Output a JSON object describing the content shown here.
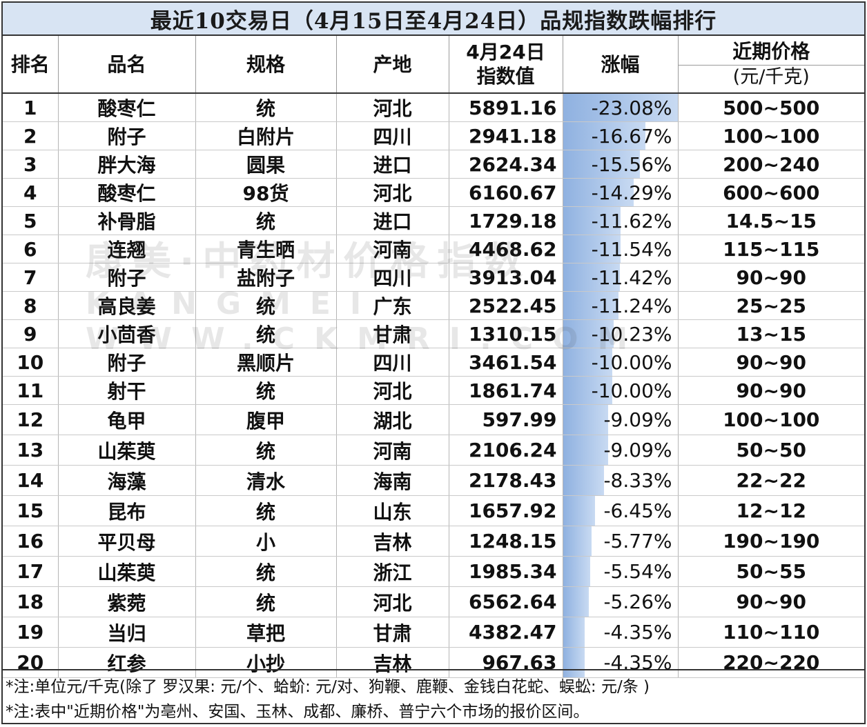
{
  "title": "最近10交易日（4月15日至4月24日）品规指数跌幅排行",
  "columns": [
    "排名",
    "品名",
    "规格",
    "产地",
    "4月24日\n指数值",
    "涨幅",
    "近期价格",
    "(元/千克)"
  ],
  "rows": [
    {
      "rank": "1",
      "name": "酸枣仁",
      "spec": "统",
      "origin": "河北",
      "index": "5891.16",
      "change": "-23.08%",
      "change_value": -23.08,
      "price": "500~500"
    },
    {
      "rank": "2",
      "name": "附子",
      "spec": "白附片",
      "origin": "四川",
      "index": "2941.18",
      "change": "-16.67%",
      "change_value": -16.67,
      "price": "100~100"
    },
    {
      "rank": "3",
      "name": "胖大海",
      "spec": "圆果",
      "origin": "进口",
      "index": "2624.34",
      "change": "-15.56%",
      "change_value": -15.56,
      "price": "200~240"
    },
    {
      "rank": "4",
      "name": "酸枣仁",
      "spec": "98货",
      "origin": "河北",
      "index": "6160.67",
      "change": "-14.29%",
      "change_value": -14.29,
      "price": "600~600"
    },
    {
      "rank": "5",
      "name": "补骨脂",
      "spec": "统",
      "origin": "进口",
      "index": "1729.18",
      "change": "-11.62%",
      "change_value": -11.62,
      "price": "14.5~15"
    },
    {
      "rank": "6",
      "name": "连翘",
      "spec": "青生晒",
      "origin": "河南",
      "index": "4468.62",
      "change": "-11.54%",
      "change_value": -11.54,
      "price": "115~115"
    },
    {
      "rank": "7",
      "name": "附子",
      "spec": "盐附子",
      "origin": "四川",
      "index": "3913.04",
      "change": "-11.42%",
      "change_value": -11.42,
      "price": "90~90"
    },
    {
      "rank": "8",
      "name": "高良姜",
      "spec": "统",
      "origin": "广东",
      "index": "2522.45",
      "change": "-11.24%",
      "change_value": -11.24,
      "price": "25~25"
    },
    {
      "rank": "9",
      "name": "小茴香",
      "spec": "统",
      "origin": "甘肃",
      "index": "1310.15",
      "change": "-10.23%",
      "change_value": -10.23,
      "price": "13~15"
    },
    {
      "rank": "10",
      "name": "附子",
      "spec": "黑顺片",
      "origin": "四川",
      "index": "3461.54",
      "change": "-10.00%",
      "change_value": -10.0,
      "price": "90~90"
    },
    {
      "rank": "11",
      "name": "射干",
      "spec": "统",
      "origin": "河北",
      "index": "1861.74",
      "change": "-10.00%",
      "change_value": -10.0,
      "price": "90~90"
    },
    {
      "rank": "12",
      "name": "龟甲",
      "spec": "腹甲",
      "origin": "湖北",
      "index": "597.99",
      "change": "-9.09%",
      "change_value": -9.09,
      "price": "100~100"
    },
    {
      "rank": "13",
      "name": "山茱萸",
      "spec": "统",
      "origin": "河南",
      "index": "2106.24",
      "change": "-9.09%",
      "change_value": -9.09,
      "price": "50~50"
    },
    {
      "rank": "14",
      "name": "海藻",
      "spec": "清水",
      "origin": "海南",
      "index": "2178.43",
      "change": "-8.33%",
      "change_value": -8.33,
      "price": "22~22"
    },
    {
      "rank": "15",
      "name": "昆布",
      "spec": "统",
      "origin": "山东",
      "index": "1657.92",
      "change": "-6.45%",
      "change_value": -6.45,
      "price": "12~12"
    },
    {
      "rank": "16",
      "name": "平贝母",
      "spec": "小",
      "origin": "吉林",
      "index": "1248.15",
      "change": "-5.77%",
      "change_value": -5.77,
      "price": "190~190"
    },
    {
      "rank": "17",
      "name": "山茱萸",
      "spec": "统",
      "origin": "浙江",
      "index": "1985.34",
      "change": "-5.54%",
      "change_value": -5.54,
      "price": "50~55"
    },
    {
      "rank": "18",
      "name": "紫菀",
      "spec": "统",
      "origin": "河北",
      "index": "6562.64",
      "change": "-5.26%",
      "change_value": -5.26,
      "price": "90~90"
    },
    {
      "rank": "19",
      "name": "当归",
      "spec": "草把",
      "origin": "甘肃",
      "index": "4382.47",
      "change": "-4.35%",
      "change_value": -4.35,
      "price": "110~110"
    },
    {
      "rank": "20",
      "name": "红参",
      "spec": "小抄",
      "origin": "吉林",
      "index": "967.63",
      "change": "-4.35%",
      "change_value": -4.35,
      "price": "220~220"
    }
  ],
  "notes": [
    "*注:单位元/千克(除了 罗汉果: 元/个、蛤蚧: 元/对、狗鞭、鹿鞭、金钱白花蛇、蜈蚣: 元/条 )",
    "*注:表中\"近期价格\"为亳州、安国、玉林、成都、廉桥、普宁六个市场的报价区间。"
  ],
  "watermark": {
    "line1": "康美·中药材价格指数",
    "line2": "KANGMEI WWW.CKMRI.COM"
  },
  "colors": {
    "title_bg": "#d8e4f3",
    "bar_start": "#8fb1e0",
    "bar_end": "#c8daf2"
  }
}
